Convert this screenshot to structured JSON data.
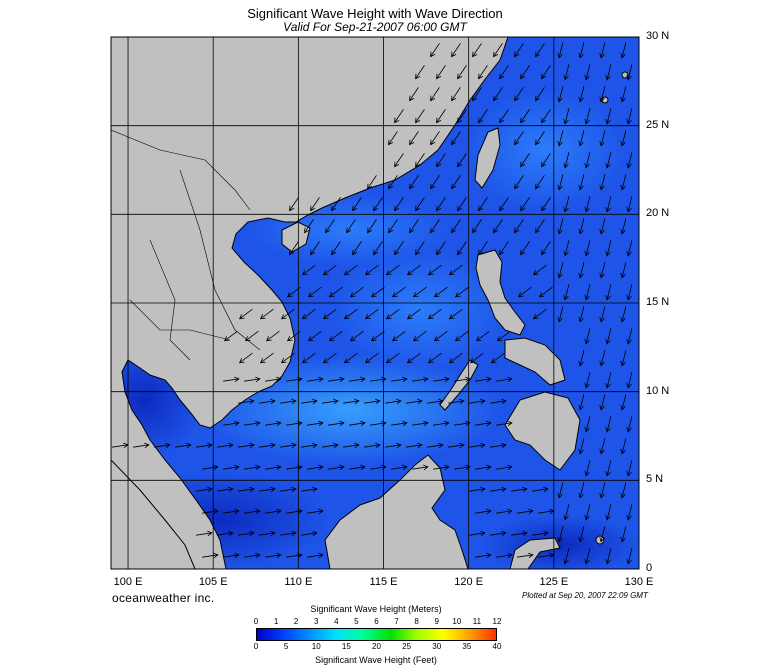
{
  "title": "Significant Wave Height with Wave Direction",
  "subtitle": "Valid For Sep-21-2007 06:00 GMT",
  "map": {
    "lon_range": [
      99,
      130
    ],
    "lat_range": [
      0,
      30
    ],
    "lat_labels": [
      "30 N",
      "25 N",
      "20 N",
      "15 N",
      "10 N",
      "5 N",
      "0"
    ],
    "lon_labels": [
      "100 E",
      "105 E",
      "110 E",
      "115 E",
      "120 E",
      "125 E",
      "130 E"
    ],
    "land_color": "#c0c0c0",
    "sea_base_color": "#1e50e6",
    "grid": true
  },
  "brand": "oceanweather inc.",
  "plotted": "Plotted at Sep 20, 2007 22:09 GMT",
  "colorbar": {
    "meters_title": "Significant Wave Height (Meters)",
    "feet_title": "Significant Wave Height (Feet)",
    "meters_ticks": [
      "0",
      "1",
      "2",
      "3",
      "4",
      "5",
      "6",
      "7",
      "8",
      "9",
      "10",
      "11",
      "12"
    ],
    "feet_ticks": [
      "0",
      "5",
      "10",
      "15",
      "20",
      "25",
      "30",
      "35",
      "40"
    ],
    "colors": [
      "#0000c8",
      "#0040ff",
      "#0090ff",
      "#00e0ff",
      "#00ffa0",
      "#00e000",
      "#a0ff00",
      "#ffff00",
      "#ffa000",
      "#ff3000"
    ]
  }
}
